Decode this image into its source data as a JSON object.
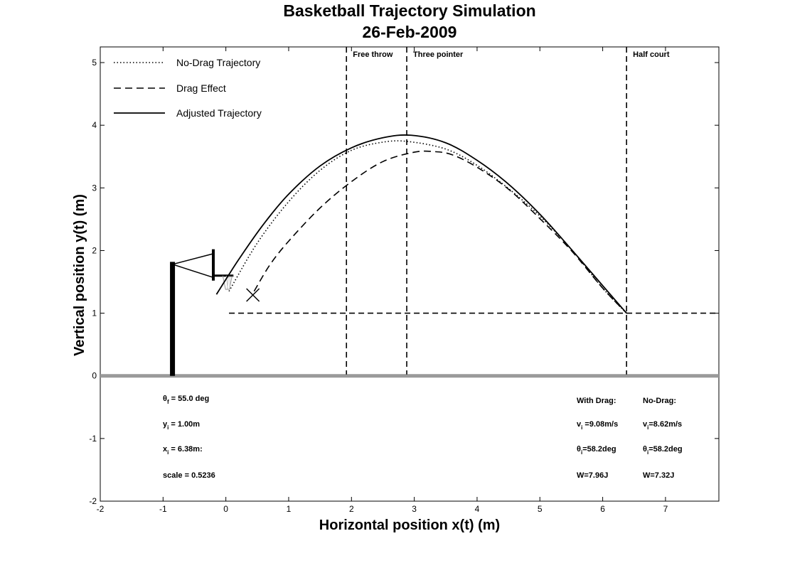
{
  "chart_data": {
    "type": "line",
    "title": "Basketball Trajectory Simulation",
    "subtitle": "26-Feb-2009",
    "xlabel": "Horizontal position x(t)  (m)",
    "ylabel": "Vertical position y(t)  (m)",
    "xlim": [
      -2,
      7.85
    ],
    "ylim": [
      -2,
      5.25
    ],
    "xticks": [
      -2,
      -1,
      0,
      1,
      2,
      3,
      4,
      5,
      6,
      7
    ],
    "yticks": [
      -2,
      -1,
      0,
      1,
      2,
      3,
      4,
      5
    ],
    "grid": false,
    "legend_position": "top-left",
    "series": [
      {
        "name": "No-Drag Trajectory",
        "style": "dotted",
        "x": [
          0.05,
          0.5,
          1.0,
          1.5,
          2.0,
          2.5,
          2.9,
          3.5,
          4.0,
          4.5,
          5.0,
          5.5,
          6.0,
          6.38
        ],
        "y": [
          1.35,
          2.12,
          2.78,
          3.28,
          3.6,
          3.73,
          3.74,
          3.62,
          3.36,
          2.99,
          2.55,
          2.02,
          1.4,
          1.0
        ]
      },
      {
        "name": "Drag Effect",
        "style": "dashed",
        "x": [
          0.45,
          0.7,
          1.0,
          1.5,
          2.0,
          2.5,
          3.0,
          3.3,
          3.6,
          4.0,
          4.5,
          5.0,
          5.5,
          6.0,
          6.38
        ],
        "y": [
          1.35,
          1.77,
          2.15,
          2.68,
          3.1,
          3.42,
          3.57,
          3.58,
          3.53,
          3.33,
          2.98,
          2.51,
          2.0,
          1.4,
          1.0
        ]
      },
      {
        "name": "Adjusted Trajectory",
        "style": "solid",
        "x": [
          -0.15,
          0.2,
          0.6,
          1.0,
          1.5,
          2.0,
          2.5,
          2.95,
          3.5,
          4.0,
          4.5,
          5.0,
          5.5,
          6.0,
          6.38
        ],
        "y": [
          1.3,
          1.85,
          2.42,
          2.9,
          3.35,
          3.64,
          3.8,
          3.84,
          3.72,
          3.44,
          3.06,
          2.58,
          2.02,
          1.44,
          1.0
        ]
      }
    ],
    "reference_lines": [
      {
        "orientation": "vertical",
        "x": 1.92,
        "label": "Free throw"
      },
      {
        "orientation": "vertical",
        "x": 2.88,
        "label": "Three pointer"
      },
      {
        "orientation": "vertical",
        "x": 6.38,
        "label": "Half court"
      },
      {
        "orientation": "horizontal",
        "y": 1.0,
        "x_from": 0.05,
        "label": ""
      }
    ],
    "ground_line_y": 0,
    "marker": {
      "symbol": "x",
      "x": 0.43,
      "y": 1.29
    },
    "hoop": {
      "pole_x": -0.85,
      "pole_top": 1.82,
      "board_x": -0.2,
      "board_y": [
        1.52,
        2.02
      ],
      "rim_x": [
        -0.2,
        0.12
      ],
      "rim_y": 1.6
    },
    "annotations_left": [
      {
        "main": "θ",
        "sub": "f",
        "rest": " = 55.0 deg"
      },
      {
        "main": "y",
        "sub": "i",
        "rest": " = 1.00m"
      },
      {
        "main": "x",
        "sub": "i",
        "rest": " = 6.38m:"
      },
      {
        "main": "scale = 0.5236",
        "sub": "",
        "rest": ""
      }
    ],
    "annotations_right": {
      "with_drag": [
        {
          "main": "With Drag:",
          "sub": "",
          "rest": ""
        },
        {
          "main": "v",
          "sub": "i",
          "rest": " =9.08m/s"
        },
        {
          "main": "θ",
          "sub": "i",
          "rest": "=58.2deg"
        },
        {
          "main": "W=7.96J",
          "sub": "",
          "rest": ""
        }
      ],
      "no_drag": [
        {
          "main": "No-Drag:",
          "sub": "",
          "rest": ""
        },
        {
          "main": "v",
          "sub": "i",
          "rest": "=8.62m/s"
        },
        {
          "main": "θ",
          "sub": "i",
          "rest": "=58.2deg"
        },
        {
          "main": "W=7.32J",
          "sub": "",
          "rest": ""
        }
      ]
    }
  }
}
